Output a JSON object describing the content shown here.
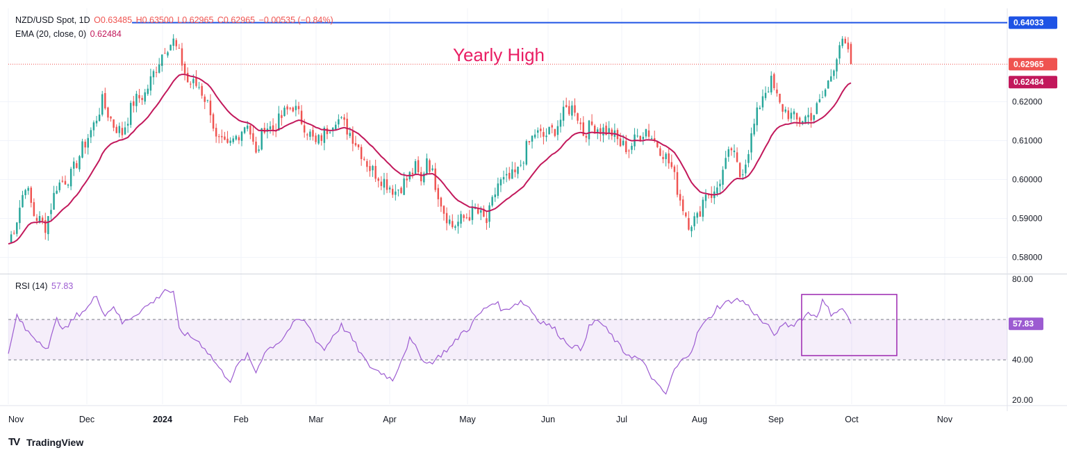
{
  "header": {
    "symbol": "NZD/USD Spot, 1D",
    "open": "O0.63485",
    "high": "H0.63500",
    "low": "L0.62965",
    "close": "C0.62965",
    "change": "−0.00535 (−0.84%)",
    "ema_label": "EMA (20, close, 0)",
    "ema_value": "0.62484",
    "rsi_label": "RSI (14)",
    "rsi_value": "57.83"
  },
  "annotation": {
    "yearly_high": "Yearly High"
  },
  "branding": {
    "name": "TradingView",
    "logo_icon": "tradingview-logo-icon"
  },
  "colors": {
    "up": "#26a69a",
    "down": "#ef5350",
    "ema": "#c2185b",
    "rsi": "#9c5bd1",
    "highline": "#1e53e5",
    "grid": "#f0f3fa",
    "axis_text": "#131722"
  },
  "chart_data": [
    {
      "type": "candlestick",
      "title": "NZD/USD Spot, 1D",
      "series": [
        {
          "name": "NZD/USD",
          "note": "daily candles"
        },
        {
          "name": "EMA (20, close, 0)"
        }
      ],
      "ylim": [
        0.576,
        0.644
      ],
      "yticks": [
        "0.58000",
        "0.59000",
        "0.60000",
        "0.61000",
        "0.62000"
      ],
      "xtick_labels": [
        "Nov",
        "Dec",
        "2024",
        "Feb",
        "Mar",
        "Apr",
        "May",
        "Jun",
        "Jul",
        "Aug",
        "Sep",
        "Oct",
        "Nov"
      ],
      "price_labels": {
        "yearly_high": "0.64033",
        "last_close": "0.62965",
        "ema": "0.62484"
      },
      "horizontal_line": 0.64033,
      "last_price": 0.62965,
      "anchors": [
        [
          0,
          0.5835
        ],
        [
          3,
          0.59
        ],
        [
          6,
          0.599
        ],
        [
          9,
          0.591
        ],
        [
          13,
          0.588
        ],
        [
          17,
          0.5985
        ],
        [
          22,
          0.601
        ],
        [
          26,
          0.608
        ],
        [
          30,
          0.614
        ],
        [
          33,
          0.62
        ],
        [
          37,
          0.614
        ],
        [
          40,
          0.612
        ],
        [
          44,
          0.62
        ],
        [
          48,
          0.622
        ],
        [
          52,
          0.629
        ],
        [
          55,
          0.634
        ],
        [
          58,
          0.6355
        ],
        [
          61,
          0.63
        ],
        [
          63,
          0.625
        ],
        [
          67,
          0.624
        ],
        [
          71,
          0.618
        ],
        [
          73,
          0.61
        ],
        [
          77,
          0.608
        ],
        [
          81,
          0.612
        ],
        [
          84,
          0.615
        ],
        [
          87,
          0.606
        ],
        [
          90,
          0.614
        ],
        [
          93,
          0.613
        ],
        [
          97,
          0.617
        ],
        [
          100,
          0.619
        ],
        [
          104,
          0.614
        ],
        [
          108,
          0.609
        ],
        [
          111,
          0.612
        ],
        [
          115,
          0.616
        ],
        [
          118,
          0.614
        ],
        [
          121,
          0.611
        ],
        [
          124,
          0.607
        ],
        [
          127,
          0.603
        ],
        [
          130,
          0.601
        ],
        [
          133,
          0.599
        ],
        [
          136,
          0.597
        ],
        [
          140,
          0.6
        ],
        [
          143,
          0.603
        ],
        [
          145,
          0.599
        ],
        [
          147,
          0.606
        ],
        [
          150,
          0.599
        ],
        [
          153,
          0.592
        ],
        [
          156,
          0.588
        ],
        [
          160,
          0.59
        ],
        [
          164,
          0.592
        ],
        [
          168,
          0.589
        ],
        [
          172,
          0.599
        ],
        [
          176,
          0.6
        ],
        [
          179,
          0.602
        ],
        [
          182,
          0.608
        ],
        [
          185,
          0.612
        ],
        [
          188,
          0.611
        ],
        [
          192,
          0.613
        ],
        [
          196,
          0.618
        ],
        [
          199,
          0.6185
        ],
        [
          202,
          0.612
        ],
        [
          205,
          0.614
        ],
        [
          208,
          0.613
        ],
        [
          212,
          0.612
        ],
        [
          215,
          0.609
        ],
        [
          218,
          0.608
        ],
        [
          221,
          0.611
        ],
        [
          224,
          0.613
        ],
        [
          227,
          0.61
        ],
        [
          230,
          0.607
        ],
        [
          233,
          0.603
        ],
        [
          236,
          0.595
        ],
        [
          239,
          0.589
        ],
        [
          242,
          0.59
        ],
        [
          245,
          0.597
        ],
        [
          248,
          0.596
        ],
        [
          251,
          0.602
        ],
        [
          254,
          0.608
        ],
        [
          257,
          0.601
        ],
        [
          259,
          0.605
        ],
        [
          262,
          0.614
        ],
        [
          265,
          0.622
        ],
        [
          268,
          0.625
        ],
        [
          271,
          0.619
        ],
        [
          274,
          0.617
        ],
        [
          277,
          0.615
        ],
        [
          280,
          0.616
        ],
        [
          283,
          0.617
        ],
        [
          286,
          0.621
        ],
        [
          289,
          0.627
        ],
        [
          292,
          0.635
        ],
        [
          294,
          0.634
        ],
        [
          296,
          0.6296
        ]
      ],
      "total_bars": 297,
      "ema_end": 0.62484
    },
    {
      "type": "line",
      "title": "RSI (14)",
      "series": [
        {
          "name": "RSI (14)"
        }
      ],
      "ylim": [
        18,
        82
      ],
      "yticks": [
        "80.00",
        "40.00",
        "20.00"
      ],
      "band": [
        40,
        60
      ],
      "last_value": "57.83",
      "anchors": [
        [
          0,
          42
        ],
        [
          3,
          62
        ],
        [
          6,
          55
        ],
        [
          10,
          50
        ],
        [
          14,
          46
        ],
        [
          17,
          60
        ],
        [
          20,
          55
        ],
        [
          24,
          62
        ],
        [
          28,
          66
        ],
        [
          31,
          72
        ],
        [
          34,
          62
        ],
        [
          37,
          67
        ],
        [
          40,
          58
        ],
        [
          44,
          62
        ],
        [
          48,
          66
        ],
        [
          52,
          70
        ],
        [
          55,
          75
        ],
        [
          58,
          73
        ],
        [
          60,
          55
        ],
        [
          63,
          52
        ],
        [
          66,
          50
        ],
        [
          69,
          46
        ],
        [
          72,
          40
        ],
        [
          75,
          34
        ],
        [
          78,
          30
        ],
        [
          81,
          38
        ],
        [
          84,
          42
        ],
        [
          87,
          34
        ],
        [
          90,
          44
        ],
        [
          93,
          47
        ],
        [
          96,
          50
        ],
        [
          99,
          56
        ],
        [
          102,
          60
        ],
        [
          105,
          58
        ],
        [
          108,
          50
        ],
        [
          111,
          45
        ],
        [
          114,
          52
        ],
        [
          117,
          57
        ],
        [
          120,
          52
        ],
        [
          123,
          45
        ],
        [
          126,
          38
        ],
        [
          129,
          35
        ],
        [
          132,
          33
        ],
        [
          135,
          30
        ],
        [
          138,
          40
        ],
        [
          141,
          50
        ],
        [
          144,
          44
        ],
        [
          147,
          38
        ],
        [
          150,
          40
        ],
        [
          153,
          44
        ],
        [
          156,
          47
        ],
        [
          159,
          53
        ],
        [
          162,
          56
        ],
        [
          165,
          62
        ],
        [
          168,
          66
        ],
        [
          171,
          69
        ],
        [
          174,
          64
        ],
        [
          177,
          67
        ],
        [
          180,
          69
        ],
        [
          183,
          66
        ],
        [
          186,
          60
        ],
        [
          189,
          58
        ],
        [
          192,
          55
        ],
        [
          195,
          50
        ],
        [
          198,
          47
        ],
        [
          201,
          45
        ],
        [
          204,
          56
        ],
        [
          207,
          60
        ],
        [
          210,
          55
        ],
        [
          213,
          50
        ],
        [
          216,
          44
        ],
        [
          219,
          42
        ],
        [
          222,
          40
        ],
        [
          225,
          34
        ],
        [
          228,
          27
        ],
        [
          231,
          23
        ],
        [
          234,
          35
        ],
        [
          237,
          40
        ],
        [
          240,
          45
        ],
        [
          243,
          56
        ],
        [
          246,
          60
        ],
        [
          249,
          66
        ],
        [
          252,
          68
        ],
        [
          255,
          70
        ],
        [
          258,
          69
        ],
        [
          261,
          65
        ],
        [
          264,
          60
        ],
        [
          267,
          56
        ],
        [
          270,
          52
        ],
        [
          272,
          58
        ],
        [
          275,
          57
        ],
        [
          278,
          60
        ],
        [
          281,
          63
        ],
        [
          284,
          62
        ],
        [
          286,
          69
        ],
        [
          289,
          63
        ],
        [
          292,
          65
        ],
        [
          294,
          64
        ],
        [
          296,
          57.83
        ]
      ],
      "total_bars": 297
    }
  ]
}
